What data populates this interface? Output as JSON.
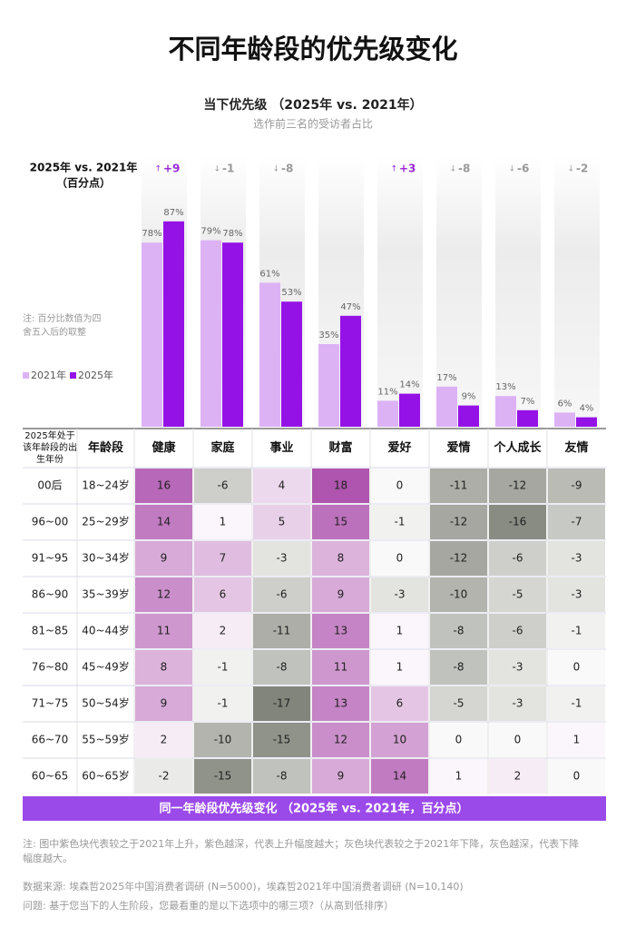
{
  "title": "不同年龄段的优先级变化",
  "chart_data": {
    "type": "bar",
    "title": "当下优先级 （2025年 vs. 2021年）",
    "subtitle": "选作前三名的受访者占比",
    "axis_label_lines": [
      "2025年 vs. 2021年",
      "（百分点）"
    ],
    "note": "注: 百分比数值为四舍五入后的取整",
    "categories": [
      "健康",
      "家庭",
      "事业",
      "财富",
      "爱好",
      "爱情",
      "个人成长",
      "友情"
    ],
    "ylim": [
      0,
      100
    ],
    "series": [
      {
        "name": "2021年",
        "color": "#dcb2f5",
        "values": [
          78,
          79,
          61,
          35,
          11,
          17,
          13,
          6
        ],
        "value_labels": [
          "78%",
          "79%",
          "61%",
          "35%",
          "11%",
          "17%",
          "13%",
          "6%"
        ]
      },
      {
        "name": "2025年",
        "color": "#9412e6",
        "values": [
          87,
          78,
          53,
          47,
          14,
          9,
          7,
          4
        ],
        "value_labels": [
          "87%",
          "78%",
          "53%",
          "47%",
          "14%",
          "9%",
          "7%",
          "4%"
        ]
      }
    ],
    "changes": [
      9,
      -1,
      -8,
      null,
      3,
      -8,
      -6,
      -2
    ],
    "change_labels": [
      "+9",
      "-1",
      "-8",
      null,
      "+3",
      "-8",
      "-6",
      "-2"
    ]
  },
  "table": {
    "header": [
      "2025年处于该年龄段的出生年份",
      "年龄段",
      "健康",
      "家庭",
      "事业",
      "财富",
      "爱好",
      "爱情",
      "个人成长",
      "友情"
    ],
    "rows": [
      [
        "00后",
        "18~24岁",
        16,
        -6,
        4,
        18,
        0,
        -11,
        -12,
        -9
      ],
      [
        "96~00",
        "25~29岁",
        14,
        1,
        5,
        15,
        -1,
        -12,
        -16,
        -7
      ],
      [
        "91~95",
        "30~34岁",
        9,
        7,
        -3,
        8,
        0,
        -12,
        -6,
        -3
      ],
      [
        "86~90",
        "35~39岁",
        12,
        6,
        -6,
        9,
        -3,
        -10,
        -5,
        -3
      ],
      [
        "81~85",
        "40~44岁",
        11,
        2,
        -11,
        13,
        1,
        -8,
        -6,
        -1
      ],
      [
        "76~80",
        "45~49岁",
        8,
        -1,
        -8,
        11,
        1,
        -8,
        -3,
        0
      ],
      [
        "71~75",
        "50~54岁",
        9,
        -1,
        -17,
        13,
        6,
        -5,
        -3,
        -1
      ],
      [
        "66~70",
        "55~59岁",
        2,
        -10,
        -15,
        12,
        10,
        0,
        0,
        1
      ],
      [
        "60~65",
        "60~65岁",
        -2,
        -15,
        -8,
        9,
        14,
        1,
        2,
        0
      ]
    ],
    "caption": "同一年龄段优先级变化 （2025年 vs. 2021年，百分点）"
  },
  "footnotes": [
    "注: 图中紫色块代表较之于2021年上升，紫色越深，代表上升幅度越大；灰色块代表较之于2021年下降，灰色越深，代表下降幅度越大。",
    "数据来源: 埃森哲2025年中国消费者调研 (N=5000)，埃森哲2021年中国消费者调研 (N=10,140)",
    "问题: 基于您当下的人生阶段，您最看重的是以下选项中的哪三项?（从高到低排序）"
  ]
}
